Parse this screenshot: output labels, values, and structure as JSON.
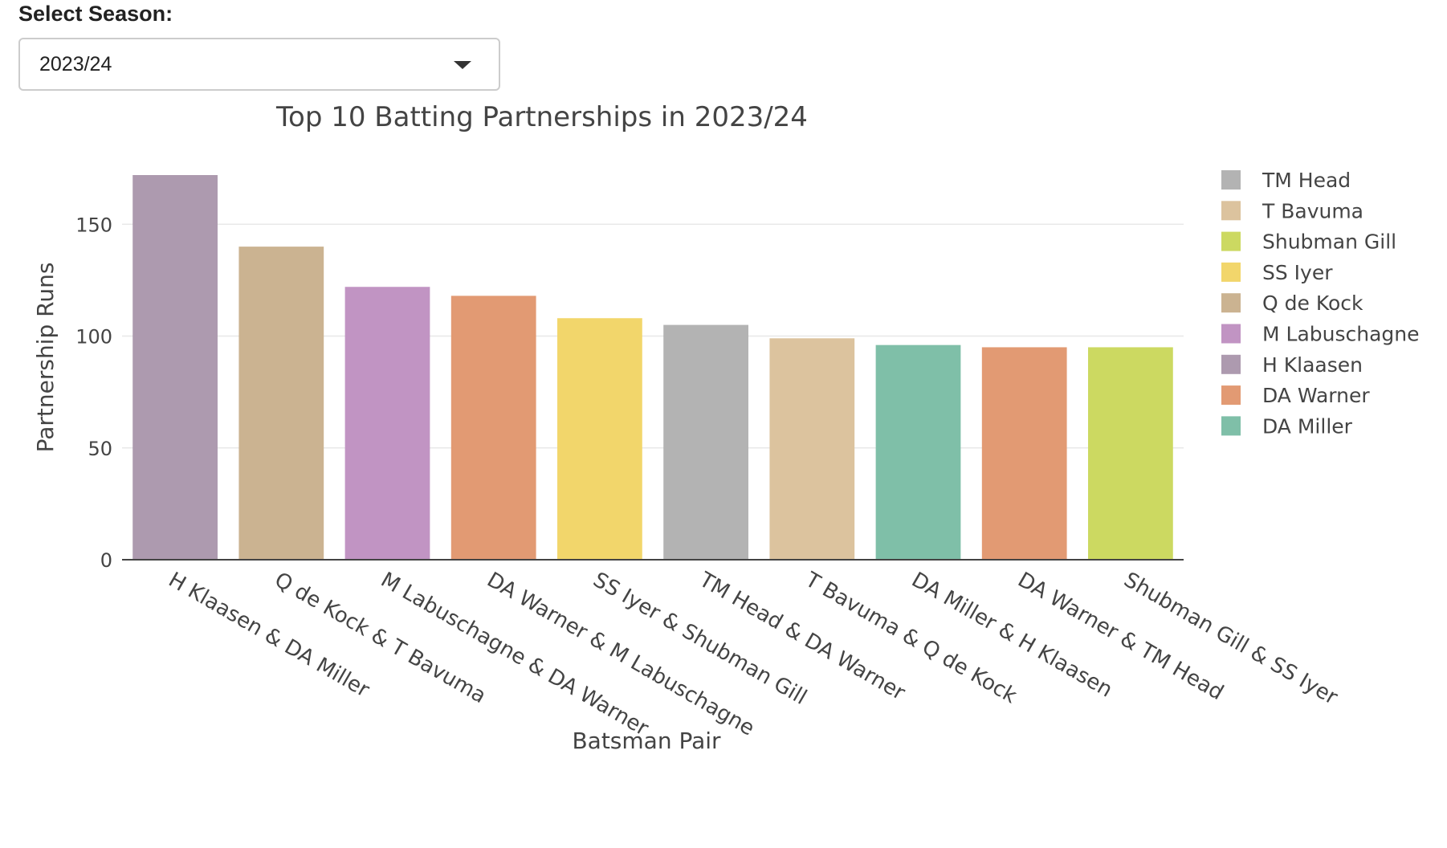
{
  "season_selector": {
    "label": "Select Season:",
    "selected": "2023/24"
  },
  "chart_data": {
    "type": "bar",
    "title": "Top 10 Batting Partnerships in 2023/24",
    "xlabel": "Batsman Pair",
    "ylabel": "Partnership Runs",
    "ylim": [
      0,
      172
    ],
    "yticks": [
      0,
      50,
      100,
      150
    ],
    "grid": true,
    "legend_position": "right",
    "categories": [
      "H Klaasen & DA Miller",
      "Q de Kock & T Bavuma",
      "M Labuschagne & DA Warner",
      "DA Warner & M Labuschagne",
      "SS Iyer & Shubman Gill",
      "TM Head & DA Warner",
      "T Bavuma & Q de Kock",
      "DA Miller & H Klaasen",
      "DA Warner & TM Head",
      "Shubman Gill & SS Iyer"
    ],
    "values": [
      172,
      140,
      122,
      118,
      108,
      105,
      99,
      96,
      95,
      95
    ],
    "bar_series": [
      "H Klaasen",
      "Q de Kock",
      "M Labuschagne",
      "DA Warner",
      "SS Iyer",
      "TM Head",
      "T Bavuma",
      "DA Miller",
      "DA Warner",
      "Shubman Gill"
    ],
    "legend": [
      {
        "name": "TM Head",
        "color": "#b3b3b3"
      },
      {
        "name": "T Bavuma",
        "color": "#dcc39e"
      },
      {
        "name": "Shubman Gill",
        "color": "#ccd961"
      },
      {
        "name": "SS Iyer",
        "color": "#f2d66b"
      },
      {
        "name": "Q de Kock",
        "color": "#cbb391"
      },
      {
        "name": "M Labuschagne",
        "color": "#c194c3"
      },
      {
        "name": "H Klaasen",
        "color": "#ad9aaf"
      },
      {
        "name": "DA Warner",
        "color": "#e29a73"
      },
      {
        "name": "DA Miller",
        "color": "#7fbfa8"
      }
    ]
  }
}
